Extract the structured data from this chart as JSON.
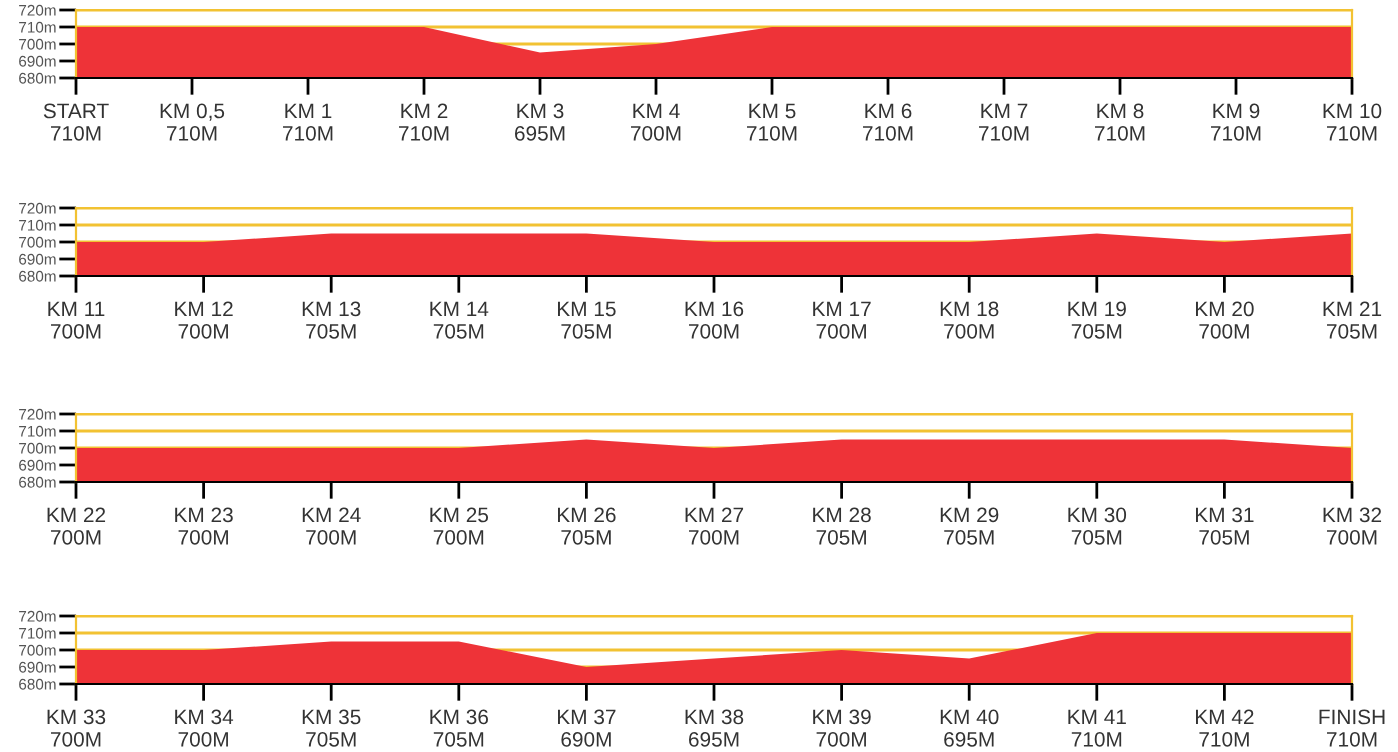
{
  "chart_data": [
    {
      "type": "area",
      "categories": [
        "START",
        "KM 0,5",
        "KM 1",
        "KM 2",
        "KM 3",
        "KM 4",
        "KM 5",
        "KM 6",
        "KM 7",
        "KM 8",
        "KM 9",
        "KM 10"
      ],
      "values": [
        710,
        710,
        710,
        710,
        695,
        700,
        710,
        710,
        710,
        710,
        710,
        710
      ],
      "value_labels": [
        "710M",
        "710M",
        "710M",
        "710M",
        "695M",
        "700M",
        "710M",
        "710M",
        "710M",
        "710M",
        "710M",
        "710M"
      ],
      "color": "#ee3338",
      "ylim": [
        680,
        720
      ],
      "yticks": [
        {
          "value": 680,
          "label": "680m"
        },
        {
          "value": 690,
          "label": "690m"
        },
        {
          "value": 700,
          "label": "700m"
        },
        {
          "value": 710,
          "label": "710m"
        },
        {
          "value": 720,
          "label": "720m"
        }
      ],
      "grid": "y"
    },
    {
      "type": "area",
      "categories": [
        "KM 11",
        "KM 12",
        "KM 13",
        "KM 14",
        "KM 15",
        "KM 16",
        "KM 17",
        "KM 18",
        "KM 19",
        "KM 20",
        "KM 21"
      ],
      "values": [
        700,
        700,
        705,
        705,
        705,
        700,
        700,
        700,
        705,
        700,
        705
      ],
      "value_labels": [
        "700M",
        "700M",
        "705M",
        "705M",
        "705M",
        "700M",
        "700M",
        "700M",
        "705M",
        "700M",
        "705M"
      ],
      "color": "#ee3338",
      "ylim": [
        680,
        720
      ],
      "yticks": [
        {
          "value": 680,
          "label": "680m"
        },
        {
          "value": 690,
          "label": "690m"
        },
        {
          "value": 700,
          "label": "700m"
        },
        {
          "value": 710,
          "label": "710m"
        },
        {
          "value": 720,
          "label": "720m"
        }
      ],
      "grid": "y"
    },
    {
      "type": "area",
      "categories": [
        "KM 22",
        "KM 23",
        "KM 24",
        "KM 25",
        "KM 26",
        "KM 27",
        "KM 28",
        "KM 29",
        "KM 30",
        "KM 31",
        "KM 32"
      ],
      "values": [
        700,
        700,
        700,
        700,
        705,
        700,
        705,
        705,
        705,
        705,
        700
      ],
      "value_labels": [
        "700M",
        "700M",
        "700M",
        "700M",
        "705M",
        "700M",
        "705M",
        "705M",
        "705M",
        "705M",
        "700M"
      ],
      "color": "#ee3338",
      "ylim": [
        680,
        720
      ],
      "yticks": [
        {
          "value": 680,
          "label": "680m"
        },
        {
          "value": 690,
          "label": "690m"
        },
        {
          "value": 700,
          "label": "700m"
        },
        {
          "value": 710,
          "label": "710m"
        },
        {
          "value": 720,
          "label": "720m"
        }
      ],
      "grid": "y"
    },
    {
      "type": "area",
      "categories": [
        "KM 33",
        "KM 34",
        "KM 35",
        "KM 36",
        "KM 37",
        "KM 38",
        "KM 39",
        "KM 40",
        "KM 41",
        "KM 42",
        "FINISH"
      ],
      "values": [
        700,
        700,
        705,
        705,
        690,
        695,
        700,
        695,
        710,
        710,
        710
      ],
      "value_labels": [
        "700M",
        "700M",
        "705M",
        "705M",
        "690M",
        "695M",
        "700M",
        "695M",
        "710M",
        "710M",
        "710M"
      ],
      "color": "#ee3338",
      "ylim": [
        680,
        720
      ],
      "yticks": [
        {
          "value": 680,
          "label": "680m"
        },
        {
          "value": 690,
          "label": "690m"
        },
        {
          "value": 700,
          "label": "700m"
        },
        {
          "value": 710,
          "label": "710m"
        },
        {
          "value": 720,
          "label": "720m"
        }
      ],
      "grid": "y"
    }
  ]
}
